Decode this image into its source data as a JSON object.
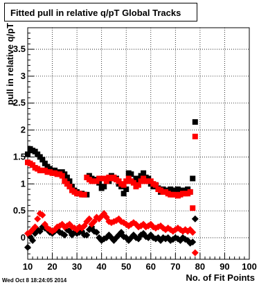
{
  "chart_data": {
    "type": "scatter",
    "title": "Fitted pull in relative q/pT  Global Tracks",
    "xlabel": "No. of Fit Points",
    "ylabel": "pull in relative q/pT",
    "xlim": [
      10,
      100
    ],
    "ylim": [
      -0.4,
      3.9
    ],
    "x_ticks": [
      10,
      20,
      30,
      40,
      50,
      60,
      70,
      80,
      90,
      100
    ],
    "y_ticks": [
      0,
      0.5,
      1,
      1.5,
      2,
      2.5,
      3,
      3.5
    ],
    "y_tick_labels": [
      "0",
      "0.5",
      "1",
      "1.5",
      "2",
      "2.5",
      "3",
      "3.5"
    ],
    "grid": true,
    "timestamp": "Wed Oct  8 18:24:05 2014",
    "series": [
      {
        "marker": "square",
        "color": "#000000",
        "x": [
          10,
          11,
          12,
          13,
          14,
          15,
          16,
          17,
          18,
          19,
          20,
          21,
          22,
          23,
          24,
          25,
          26,
          27,
          28,
          29,
          30,
          31,
          32,
          33,
          34,
          35,
          36,
          37,
          38,
          39,
          40,
          41,
          42,
          43,
          44,
          45,
          46,
          47,
          48,
          49,
          50,
          51,
          52,
          53,
          54,
          55,
          56,
          57,
          58,
          59,
          60,
          61,
          62,
          63,
          64,
          65,
          66,
          67,
          68,
          69,
          70,
          71,
          72,
          73,
          74,
          75,
          76,
          77,
          78
        ],
        "values": [
          1.55,
          1.65,
          1.62,
          1.6,
          1.55,
          1.5,
          1.45,
          1.38,
          1.32,
          1.28,
          1.25,
          1.25,
          1.22,
          1.2,
          1.22,
          1.18,
          1.12,
          1.05,
          0.95,
          0.88,
          0.85,
          0.82,
          0.82,
          0.8,
          0.8,
          1.15,
          1.1,
          1.05,
          1.08,
          1.02,
          0.92,
          0.95,
          1.1,
          1.05,
          1.15,
          1.12,
          1.1,
          1.0,
          0.95,
          0.82,
          0.9,
          1.2,
          1.18,
          1.05,
          1.1,
          1.05,
          1.15,
          1.2,
          1.12,
          1.1,
          1.0,
          0.95,
          0.98,
          0.92,
          0.85,
          0.9,
          0.88,
          0.85,
          0.9,
          0.88,
          0.85,
          0.9,
          0.88,
          0.85,
          0.88,
          0.9,
          0.85,
          1.1,
          2.15
        ]
      },
      {
        "marker": "square",
        "color": "#ff0000",
        "x": [
          10,
          11,
          12,
          13,
          14,
          15,
          16,
          17,
          18,
          19,
          20,
          21,
          22,
          23,
          24,
          25,
          26,
          27,
          28,
          29,
          30,
          31,
          32,
          33,
          34,
          35,
          36,
          37,
          38,
          39,
          40,
          41,
          42,
          43,
          44,
          45,
          46,
          47,
          48,
          49,
          50,
          51,
          52,
          53,
          54,
          55,
          56,
          57,
          58,
          59,
          60,
          61,
          62,
          63,
          64,
          65,
          66,
          67,
          68,
          69,
          70,
          71,
          72,
          73,
          74,
          75,
          76,
          77,
          78
        ],
        "values": [
          1.4,
          1.38,
          1.35,
          1.3,
          1.28,
          1.25,
          1.25,
          1.25,
          1.22,
          1.22,
          1.2,
          1.2,
          1.18,
          1.18,
          1.15,
          1.05,
          1.0,
          0.95,
          0.88,
          0.85,
          0.82,
          0.82,
          0.8,
          0.8,
          1.12,
          1.08,
          1.05,
          1.05,
          1.05,
          1.1,
          1.1,
          1.1,
          1.05,
          1.12,
          1.1,
          1.12,
          1.08,
          1.05,
          1.0,
          0.98,
          1.05,
          1.1,
          1.05,
          1.02,
          0.95,
          0.98,
          1.05,
          1.1,
          1.05,
          1.05,
          1.05,
          1.0,
          0.98,
          0.9,
          0.88,
          0.85,
          0.85,
          0.82,
          0.8,
          0.8,
          0.8,
          0.78,
          0.8,
          0.82,
          0.82,
          0.82,
          0.85,
          0.55,
          1.88
        ]
      },
      {
        "marker": "diamond",
        "color": "#000000",
        "x": [
          10,
          11,
          12,
          13,
          14,
          15,
          16,
          17,
          18,
          19,
          20,
          21,
          22,
          23,
          24,
          25,
          26,
          27,
          28,
          29,
          30,
          31,
          32,
          33,
          34,
          35,
          36,
          37,
          38,
          39,
          40,
          41,
          42,
          43,
          44,
          45,
          46,
          47,
          48,
          49,
          50,
          51,
          52,
          53,
          54,
          55,
          56,
          57,
          58,
          59,
          60,
          61,
          62,
          63,
          64,
          65,
          66,
          67,
          68,
          69,
          70,
          71,
          72,
          73,
          74,
          75,
          76,
          77,
          78
        ],
        "values": [
          -0.18,
          0.02,
          -0.05,
          0.08,
          0.15,
          0.12,
          0.2,
          0.18,
          0.15,
          0.1,
          0.08,
          0.12,
          0.15,
          0.1,
          0.08,
          0.05,
          0.15,
          0.12,
          0.05,
          0.1,
          0.08,
          0.1,
          0.12,
          0.05,
          0.05,
          0.15,
          0.2,
          0.12,
          0.1,
          0.0,
          -0.05,
          -0.02,
          0.0,
          0.05,
          0.0,
          -0.05,
          0.0,
          0.05,
          0.1,
          0.02,
          0.0,
          -0.05,
          0.0,
          0.05,
          0.0,
          -0.02,
          0.05,
          0.08,
          0.02,
          0.0,
          0.05,
          0.0,
          -0.02,
          0.0,
          -0.05,
          0.0,
          -0.02,
          0.0,
          -0.05,
          -0.03,
          0.0,
          -0.02,
          -0.05,
          0.0,
          -0.03,
          -0.05,
          -0.1,
          -0.08,
          0.35
        ]
      },
      {
        "marker": "diamond",
        "color": "#ff0000",
        "x": [
          10,
          11,
          12,
          13,
          14,
          15,
          16,
          17,
          18,
          19,
          20,
          21,
          22,
          23,
          24,
          25,
          26,
          27,
          28,
          29,
          30,
          31,
          32,
          33,
          34,
          35,
          36,
          37,
          38,
          39,
          40,
          41,
          42,
          43,
          44,
          45,
          46,
          47,
          48,
          49,
          50,
          51,
          52,
          53,
          54,
          55,
          56,
          57,
          58,
          59,
          60,
          61,
          62,
          63,
          64,
          65,
          66,
          67,
          68,
          69,
          70,
          71,
          72,
          73,
          74,
          75,
          76,
          77,
          78
        ],
        "values": [
          0.08,
          0.1,
          0.15,
          0.2,
          0.35,
          0.45,
          0.42,
          0.25,
          0.18,
          0.15,
          0.12,
          0.15,
          0.2,
          0.22,
          0.25,
          0.2,
          0.22,
          0.25,
          0.2,
          0.18,
          0.15,
          0.2,
          0.18,
          0.22,
          0.3,
          0.35,
          0.25,
          0.3,
          0.38,
          0.35,
          0.4,
          0.45,
          0.38,
          0.3,
          0.28,
          0.3,
          0.32,
          0.35,
          0.3,
          0.28,
          0.25,
          0.22,
          0.25,
          0.28,
          0.25,
          0.2,
          0.22,
          0.25,
          0.2,
          0.22,
          0.25,
          0.2,
          0.18,
          0.2,
          0.22,
          0.18,
          0.15,
          0.18,
          0.15,
          0.12,
          0.15,
          0.18,
          0.15,
          0.12,
          0.15,
          0.12,
          0.15,
          0.1,
          -0.28
        ]
      }
    ]
  }
}
